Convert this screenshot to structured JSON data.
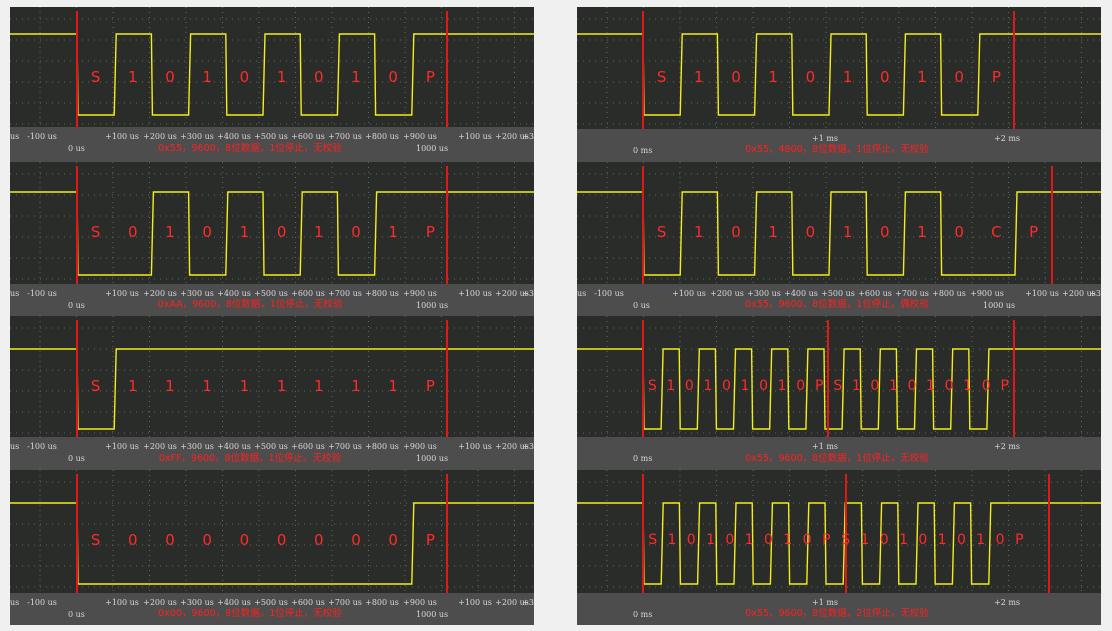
{
  "colors": {
    "background": "#f0f0f0",
    "panel": "#2a2c2a",
    "axis_bar": "#4d4d4d",
    "trace": "#f2ee1a",
    "marker": "#e01818",
    "annotation": "#ff2a2a",
    "grid": "#5a6a5a"
  },
  "left": {
    "tick_labels": [
      "us",
      "-100 us",
      "+100 us",
      "+200 us",
      "+300 us",
      "+400 us",
      "+500 us",
      "+600 us",
      "+700 us",
      "+800 us",
      "+900 us",
      "+100 us",
      "+200 us",
      "+3"
    ],
    "zero_label": "0 us",
    "end_label": "1000 us",
    "panels": [
      {
        "caption": "0x55，9600，8位数据，1位停止，无校验",
        "bits": [
          "S",
          "1",
          "0",
          "1",
          "0",
          "1",
          "0",
          "1",
          "0",
          "P"
        ]
      },
      {
        "caption": "0xAA，9600，8位数据，1位停止，无校验",
        "bits": [
          "S",
          "0",
          "1",
          "0",
          "1",
          "0",
          "1",
          "0",
          "1",
          "P"
        ]
      },
      {
        "caption": "0xFF，9600，8位数据，1位停止，无校验",
        "bits": [
          "S",
          "1",
          "1",
          "1",
          "1",
          "1",
          "1",
          "1",
          "1",
          "P"
        ]
      },
      {
        "caption": "0x00，9600，8位数据，1位停止，无校验",
        "bits": [
          "S",
          "0",
          "0",
          "0",
          "0",
          "0",
          "0",
          "0",
          "0",
          "P"
        ]
      }
    ]
  },
  "right": {
    "panels": [
      {
        "tick_labels": [
          "+1 ms",
          "+2 ms"
        ],
        "zero_label": "0 ms",
        "end_label": "",
        "caption": "0x55，4800，8位数据，1位停止，无校验",
        "bits": [
          "S",
          "1",
          "0",
          "1",
          "0",
          "1",
          "0",
          "1",
          "0",
          "P"
        ]
      },
      {
        "tick_labels": [
          "us",
          "-100 us",
          "+100 us",
          "+200 us",
          "+300 us",
          "+400 us",
          "+500 us",
          "+600 us",
          "+700 us",
          "+800 us",
          "+900 us",
          "+100 us",
          "+200 us",
          "+3"
        ],
        "zero_label": "0 us",
        "end_label": "1000 us",
        "caption": "0x55，9600，8位数据，1位停止，偶校验",
        "bits": [
          "S",
          "1",
          "0",
          "1",
          "0",
          "1",
          "0",
          "1",
          "0",
          "C",
          "P"
        ]
      },
      {
        "tick_labels": [
          "+1 ms",
          "+2 ms"
        ],
        "zero_label": "0 ms",
        "end_label": "",
        "caption": "0x55，9600，8位数据，1位停止，无校验",
        "bits": [
          "S",
          "1",
          "0",
          "1",
          "0",
          "1",
          "0",
          "1",
          "0",
          "P",
          "S",
          "1",
          "0",
          "1",
          "0",
          "1",
          "0",
          "1",
          "0",
          "P"
        ]
      },
      {
        "tick_labels": [
          "+1 ms",
          "+2 ms"
        ],
        "zero_label": "0 ms",
        "end_label": "",
        "caption": "0x55，9600，8位数据，2位停止，无校验",
        "bits": [
          "S",
          "1",
          "0",
          "1",
          "0",
          "1",
          "0",
          "1",
          "0",
          "P",
          "S",
          "1",
          "0",
          "1",
          "0",
          "1",
          "0",
          "1",
          "0",
          "P"
        ]
      }
    ]
  }
}
